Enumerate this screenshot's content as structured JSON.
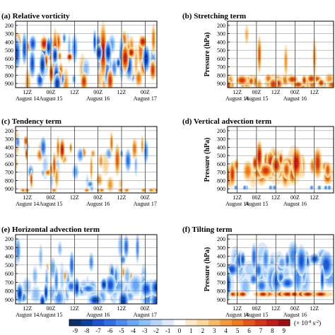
{
  "chart_data": [
    {
      "type": "heatmap",
      "title": "(a) Relative vorticity",
      "y_ticks": [
        "200",
        "300",
        "400",
        "500",
        "600",
        "700",
        "800",
        "900"
      ],
      "x_ticks": [
        {
          "time": "12Z",
          "date": "August 14"
        },
        {
          "time": "00Z",
          "date": "August 15"
        },
        {
          "time": "12Z",
          "date": ""
        },
        {
          "time": "00Z",
          "date": "August 16"
        },
        {
          "time": "12Z",
          "date": ""
        },
        {
          "time": "00Z",
          "date": "August 17"
        }
      ],
      "ylabel": "",
      "pattern": "mixed"
    },
    {
      "type": "heatmap",
      "title": "(b) Stretching term",
      "y_ticks": [
        "200",
        "300",
        "400",
        "500",
        "600",
        "700",
        "800",
        "900"
      ],
      "x_ticks": [
        {
          "time": "12Z",
          "date": "August 14"
        },
        {
          "time": "00Z",
          "date": "August 15"
        },
        {
          "time": "12Z",
          "date": ""
        },
        {
          "time": "00Z",
          "date": "August 16"
        },
        {
          "time": "12Z",
          "date": ""
        }
      ],
      "ylabel": "Pressure (hPa)",
      "pattern": "positive-low"
    },
    {
      "type": "heatmap",
      "title": "(c) Tendency term",
      "y_ticks": [
        "200",
        "300",
        "400",
        "500",
        "600",
        "700",
        "800",
        "900"
      ],
      "x_ticks": [
        {
          "time": "12Z",
          "date": "August 14"
        },
        {
          "time": "00Z",
          "date": "August 15"
        },
        {
          "time": "12Z",
          "date": ""
        },
        {
          "time": "00Z",
          "date": "August 16"
        },
        {
          "time": "12Z",
          "date": ""
        },
        {
          "time": "00Z",
          "date": "August 17"
        }
      ],
      "ylabel": "",
      "pattern": "weak-mixed"
    },
    {
      "type": "heatmap",
      "title": "(d) Vertical advection term",
      "y_ticks": [
        "200",
        "300",
        "400",
        "500",
        "600",
        "700",
        "800",
        "900"
      ],
      "x_ticks": [
        {
          "time": "12Z",
          "date": "August 14"
        },
        {
          "time": "00Z",
          "date": "August 15"
        },
        {
          "time": "12Z",
          "date": ""
        },
        {
          "time": "00Z",
          "date": "August 16"
        },
        {
          "time": "12Z",
          "date": ""
        }
      ],
      "ylabel": "Pressure (hPa)",
      "pattern": "positive-mid"
    },
    {
      "type": "heatmap",
      "title": "(e) Horizontal advection term",
      "y_ticks": [
        "200",
        "300",
        "400",
        "500",
        "600",
        "700",
        "800",
        "900"
      ],
      "x_ticks": [
        {
          "time": "12Z",
          "date": "August 14"
        },
        {
          "time": "00Z",
          "date": "August 15"
        },
        {
          "time": "12Z",
          "date": ""
        },
        {
          "time": "00Z",
          "date": "August 16"
        },
        {
          "time": "12Z",
          "date": ""
        },
        {
          "time": "00Z",
          "date": "August 17"
        }
      ],
      "ylabel": "",
      "pattern": "negative-low"
    },
    {
      "type": "heatmap",
      "title": "(f) Tilting term",
      "y_ticks": [
        "200",
        "300",
        "400",
        "500",
        "600",
        "700",
        "800",
        "900"
      ],
      "x_ticks": [
        {
          "time": "12Z",
          "date": "August 14"
        },
        {
          "time": "00Z",
          "date": "August 15"
        },
        {
          "time": "12Z",
          "date": ""
        },
        {
          "time": "00Z",
          "date": "August 16"
        },
        {
          "time": "12Z",
          "date": ""
        }
      ],
      "ylabel": "Pressure (hPa)",
      "pattern": "negative-mid"
    }
  ],
  "colorbar": {
    "ticks": [
      "-9",
      "-8",
      "-7",
      "-6",
      "-5",
      "-4",
      "-3",
      "-2",
      "-1",
      "0",
      "1",
      "2",
      "3",
      "4",
      "5",
      "6",
      "7",
      "8",
      "9"
    ],
    "unit_prefix": "(× 10",
    "unit_exp": "-8",
    "unit_mid": " s",
    "unit_exp2": "-2",
    "unit_suffix": ")",
    "colors": [
      "#08306b",
      "#0b3fa0",
      "#1a55d6",
      "#2f6fe9",
      "#4a8cf2",
      "#6aa8f7",
      "#8cc0fa",
      "#b3d7fc",
      "#dbeafd",
      "#ffffff",
      "#fde9c8",
      "#fcd69a",
      "#f9b966",
      "#f59a3a",
      "#ef7a1a",
      "#e5561a",
      "#d8361a",
      "#c51a1a",
      "#a10e12"
    ]
  }
}
